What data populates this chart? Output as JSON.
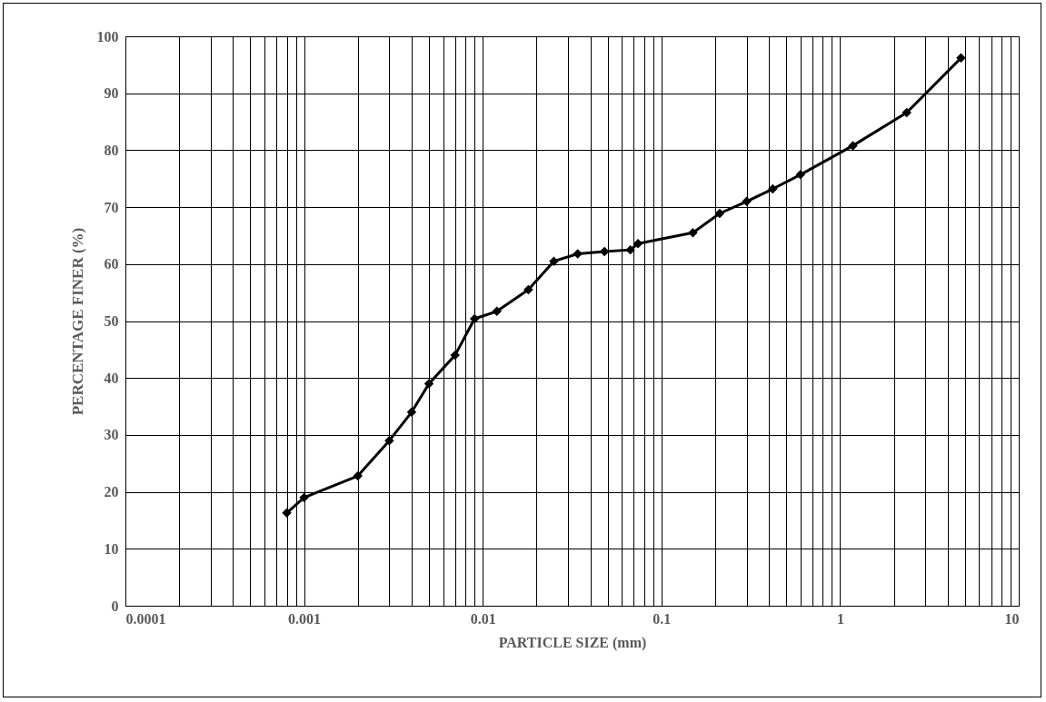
{
  "chart_data": {
    "type": "line",
    "xlabel": "PARTICLE SIZE (mm)",
    "ylabel": "PERCENTAGE FINER (%)",
    "log": "x",
    "grid": true,
    "marker": "diamond",
    "line_style": "solid",
    "x": [
      0.0008,
      0.001,
      0.002,
      0.003,
      0.004,
      0.005,
      0.007,
      0.009,
      0.012,
      0.018,
      0.025,
      0.034,
      0.048,
      0.067,
      0.074,
      0.15,
      0.212,
      0.3,
      0.42,
      0.6,
      1.18,
      2.36,
      4.75
    ],
    "series": [
      {
        "color": "#000000",
        "values": [
          16.3,
          19,
          22.8,
          29,
          34,
          39,
          44,
          50.4,
          51.7,
          55.5,
          60.5,
          61.8,
          62.2,
          62.5,
          63.6,
          65.5,
          68.9,
          71,
          73.2,
          75.7,
          80.8,
          86.6,
          96.2
        ]
      }
    ],
    "xlim": [
      0.0001,
      10
    ],
    "xticks": [
      0.0001,
      {
        "value": 0.0002,
        "label": null
      },
      {
        "value": 0.0003,
        "label": null
      },
      {
        "value": 0.0004,
        "label": null
      },
      {
        "value": 0.0005,
        "label": null
      },
      {
        "value": 0.0006,
        "label": null
      },
      {
        "value": 0.0007,
        "label": null
      },
      {
        "value": 0.0008,
        "label": null
      },
      {
        "value": 0.0009,
        "label": null
      },
      0.001,
      {
        "value": 0.002,
        "label": null
      },
      {
        "value": 0.003,
        "label": null
      },
      {
        "value": 0.004,
        "label": null
      },
      {
        "value": 0.005,
        "label": null
      },
      {
        "value": 0.006,
        "label": null
      },
      {
        "value": 0.007,
        "label": null
      },
      {
        "value": 0.008,
        "label": null
      },
      {
        "value": 0.009,
        "label": null
      },
      0.01,
      {
        "value": 0.02,
        "label": null
      },
      {
        "value": 0.03,
        "label": null
      },
      {
        "value": 0.04,
        "label": null
      },
      {
        "value": 0.05,
        "label": null
      },
      {
        "value": 0.06,
        "label": null
      },
      {
        "value": 0.07,
        "label": null
      },
      {
        "value": 0.08,
        "label": null
      },
      {
        "value": 0.09,
        "label": null
      },
      0.1,
      {
        "value": 0.2,
        "label": null
      },
      {
        "value": 0.3,
        "label": null
      },
      {
        "value": 0.4,
        "label": null
      },
      {
        "value": 0.5,
        "label": null
      },
      {
        "value": 0.6,
        "label": null
      },
      {
        "value": 0.7,
        "label": null
      },
      {
        "value": 0.8,
        "label": null
      },
      {
        "value": 0.9,
        "label": null
      },
      1,
      {
        "value": 2,
        "label": null
      },
      {
        "value": 3,
        "label": null
      },
      {
        "value": 4,
        "label": null
      },
      {
        "value": 5,
        "label": null
      },
      {
        "value": 6,
        "label": null
      },
      {
        "value": 7,
        "label": null
      },
      {
        "value": 8,
        "label": null
      },
      {
        "value": 9,
        "label": null
      },
      10
    ],
    "ylim": [
      0,
      100
    ],
    "yticks": [
      0,
      10,
      20,
      30,
      40,
      50,
      60,
      70,
      80,
      90,
      100
    ]
  }
}
